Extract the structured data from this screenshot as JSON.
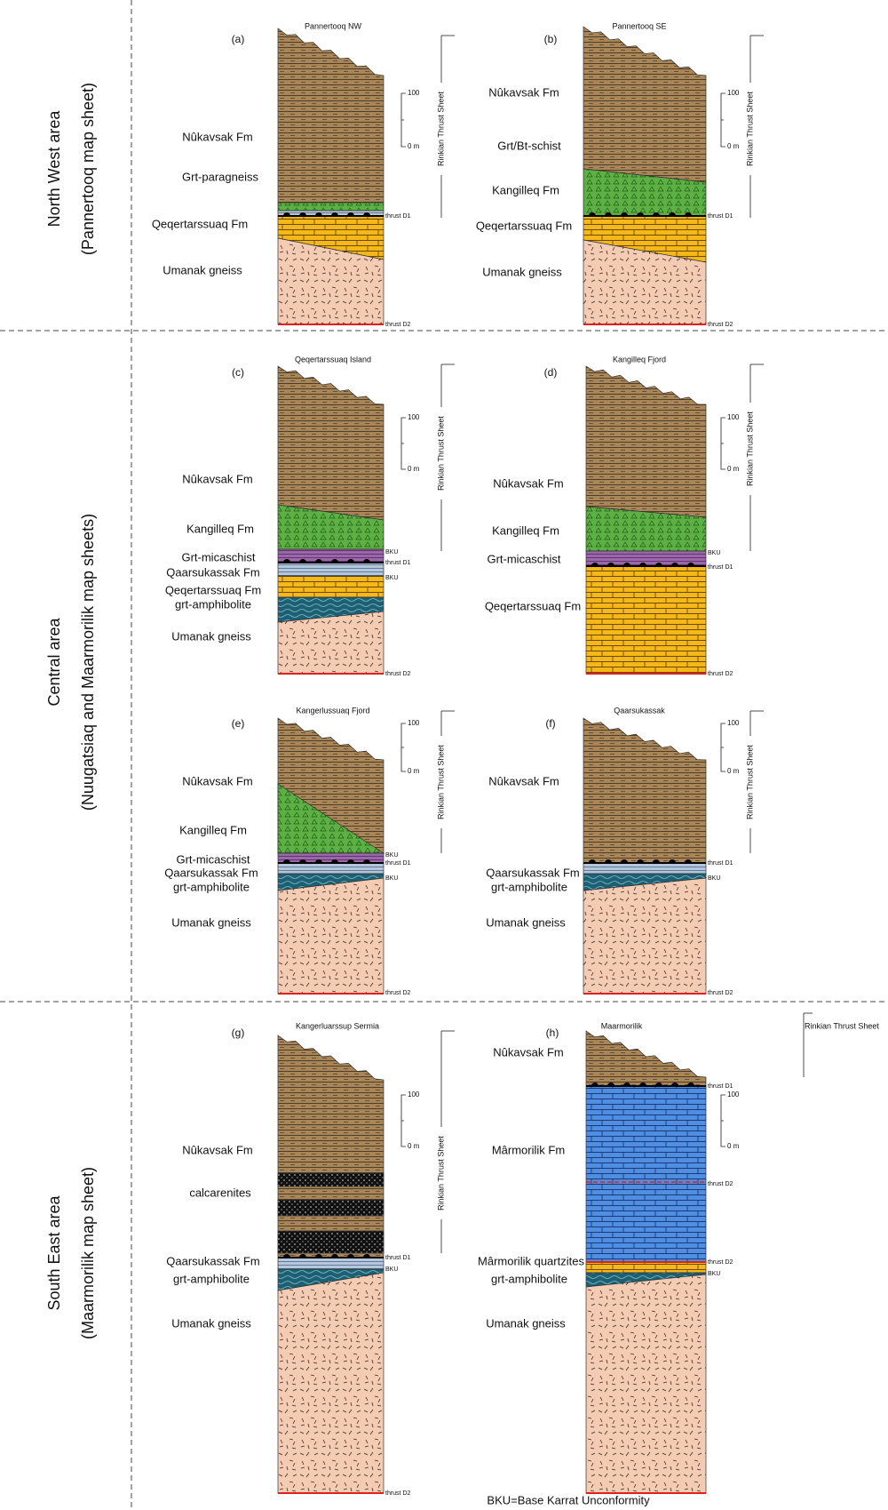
{
  "regions": [
    {
      "title": "North West area",
      "subtitle": "(Pannertooq map sheet)"
    },
    {
      "title": "Central area",
      "subtitle": "(Nuugatsiaq and Maarmorilik map sheets)"
    },
    {
      "title": "South East area",
      "subtitle": "(Maarmorilik map sheet)"
    }
  ],
  "columns": [
    {
      "letter": "(a)",
      "title": "Pannertooq NW",
      "labels": [
        "Nûkavsak Fm",
        "Grt-paragneiss",
        "Qeqertarssuaq Fm",
        "Umanak gneiss"
      ],
      "notes": [
        "thrust D1",
        "thrust D2"
      ],
      "scale": [
        "100",
        "0 m"
      ],
      "sheet": "Rinkian Thrust Sheet"
    },
    {
      "letter": "(b)",
      "title": "Pannertooq SE",
      "labels": [
        "Nûkavsak Fm",
        "Grt/Bt-schist",
        "Kangilleq Fm",
        "Qeqertarssuaq Fm",
        "Umanak gneiss"
      ],
      "notes": [
        "thrust D1",
        "thrust D2"
      ],
      "scale": [
        "100",
        "0 m"
      ],
      "sheet": "Rinkian Thrust Sheet"
    },
    {
      "letter": "(c)",
      "title": "Qeqertarssuaq Island",
      "labels": [
        "Nûkavsak Fm",
        "Kangilleq Fm",
        "Grt-micaschist",
        "Qaarsukassak Fm",
        "Qeqertarssuaq Fm",
        "grt-amphibolite",
        "Umanak gneiss"
      ],
      "notes": [
        "BKU",
        "thrust D1",
        "BKU",
        "thrust D2"
      ],
      "scale": [
        "100",
        "0 m"
      ],
      "sheet": "Rinkian Thrust Sheet"
    },
    {
      "letter": "(d)",
      "title": "Kangilleq Fjord",
      "labels": [
        "Nûkavsak Fm",
        "Kangilleq Fm",
        "Grt-micaschist",
        "Qeqertarssuaq Fm"
      ],
      "notes": [
        "BKU",
        "thrust D1",
        "thrust D2"
      ],
      "scale": [
        "100",
        "0 m"
      ],
      "sheet": "Rinkian Thrust Sheet"
    },
    {
      "letter": "(e)",
      "title": "Kangerlussuaq Fjord",
      "labels": [
        "Nûkavsak Fm",
        "Kangilleq Fm",
        "Grt-micaschist",
        "Qaarsukassak Fm",
        "grt-amphibolite",
        "Umanak gneiss"
      ],
      "notes": [
        "BKU",
        "thrust D1",
        "BKU",
        "thrust D2"
      ],
      "scale": [
        "100",
        "0 m"
      ],
      "sheet": "Rinkian Thrust Sheet"
    },
    {
      "letter": "(f)",
      "title": "Qaarsukassak",
      "labels": [
        "Nûkavsak Fm",
        "Qaarsukassak Fm",
        "grt-amphibolite",
        "Umanak gneiss"
      ],
      "notes": [
        "thrust D1",
        "BKU",
        "thrust D2"
      ],
      "scale": [
        "100",
        "0 m"
      ],
      "sheet": "Rinkian Thrust Sheet"
    },
    {
      "letter": "(g)",
      "title": "Kangerluarssup Sermia",
      "labels": [
        "Nûkavsak Fm",
        "calcarenites",
        "Qaarsukassak Fm",
        "grt-amphibolite",
        "Umanak gneiss"
      ],
      "notes": [
        "thrust D1",
        "BKU",
        "thrust D2"
      ],
      "scale": [
        "100",
        "0 m"
      ],
      "sheet": "Rinkian Thrust Sheet"
    },
    {
      "letter": "(h)",
      "title": "Maarmorilik",
      "labels": [
        "Nûkavsak Fm",
        "Mârmorilik Fm",
        "Mârmorilik quartzites",
        "grt-amphibolite",
        "Umanak gneiss"
      ],
      "notes": [
        "thrust D1",
        "thrust D2",
        "thrust D2",
        "BKU"
      ],
      "scale": [
        "100",
        "0 m"
      ],
      "sheet": "Rinkian Thrust Sheet"
    }
  ],
  "footnote": "BKU=Base Karrat Unconformity"
}
